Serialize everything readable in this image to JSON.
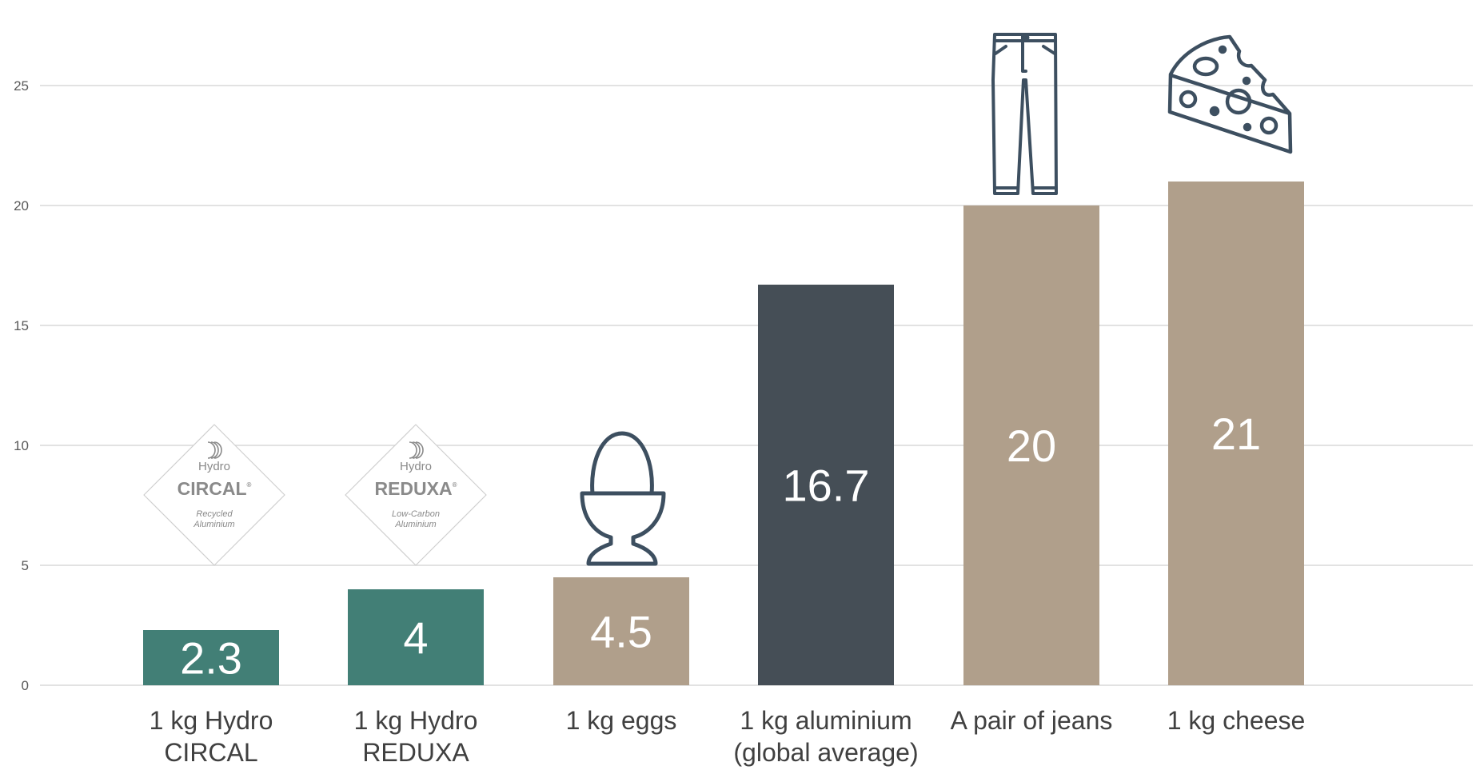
{
  "chart_data": {
    "type": "bar",
    "categories": [
      [
        "1 kg Hydro",
        "CIRCAL"
      ],
      [
        "1 kg Hydro",
        "REDUXA"
      ],
      [
        "1 kg eggs"
      ],
      [
        "1 kg aluminium",
        "(global average)"
      ],
      [
        "A pair of jeans"
      ],
      [
        "1 kg cheese"
      ]
    ],
    "values": [
      2.3,
      4,
      4.5,
      16.7,
      20,
      21
    ],
    "value_labels": [
      "2.3",
      "4",
      "4.5",
      "16.7",
      "20",
      "21"
    ],
    "bar_colors": [
      "#427f76",
      "#427f76",
      "#b09f8b",
      "#454e56",
      "#b09f8b",
      "#b09f8b"
    ],
    "icons": [
      "hydro-circal-logo",
      "hydro-reduxa-logo",
      "egg-cup-icon",
      "",
      "jeans-icon",
      "cheese-icon"
    ],
    "yticks": [
      0,
      5,
      10,
      15,
      20,
      25
    ],
    "ylim": [
      0,
      27
    ],
    "grid": true,
    "title": "",
    "xlabel": "",
    "ylabel": ""
  },
  "logos": {
    "circal": {
      "brand": "Hydro",
      "name": "CIRCAL",
      "mark": "®",
      "tagline": [
        "Recycled",
        "Aluminium"
      ]
    },
    "reduxa": {
      "brand": "Hydro",
      "name": "REDUXA",
      "mark": "®",
      "tagline": [
        "Low-Carbon",
        "Aluminium"
      ]
    }
  },
  "colors": {
    "icon": "#3d4f60",
    "grid": "#d9d9d9",
    "logo": "#8a8a8a"
  }
}
